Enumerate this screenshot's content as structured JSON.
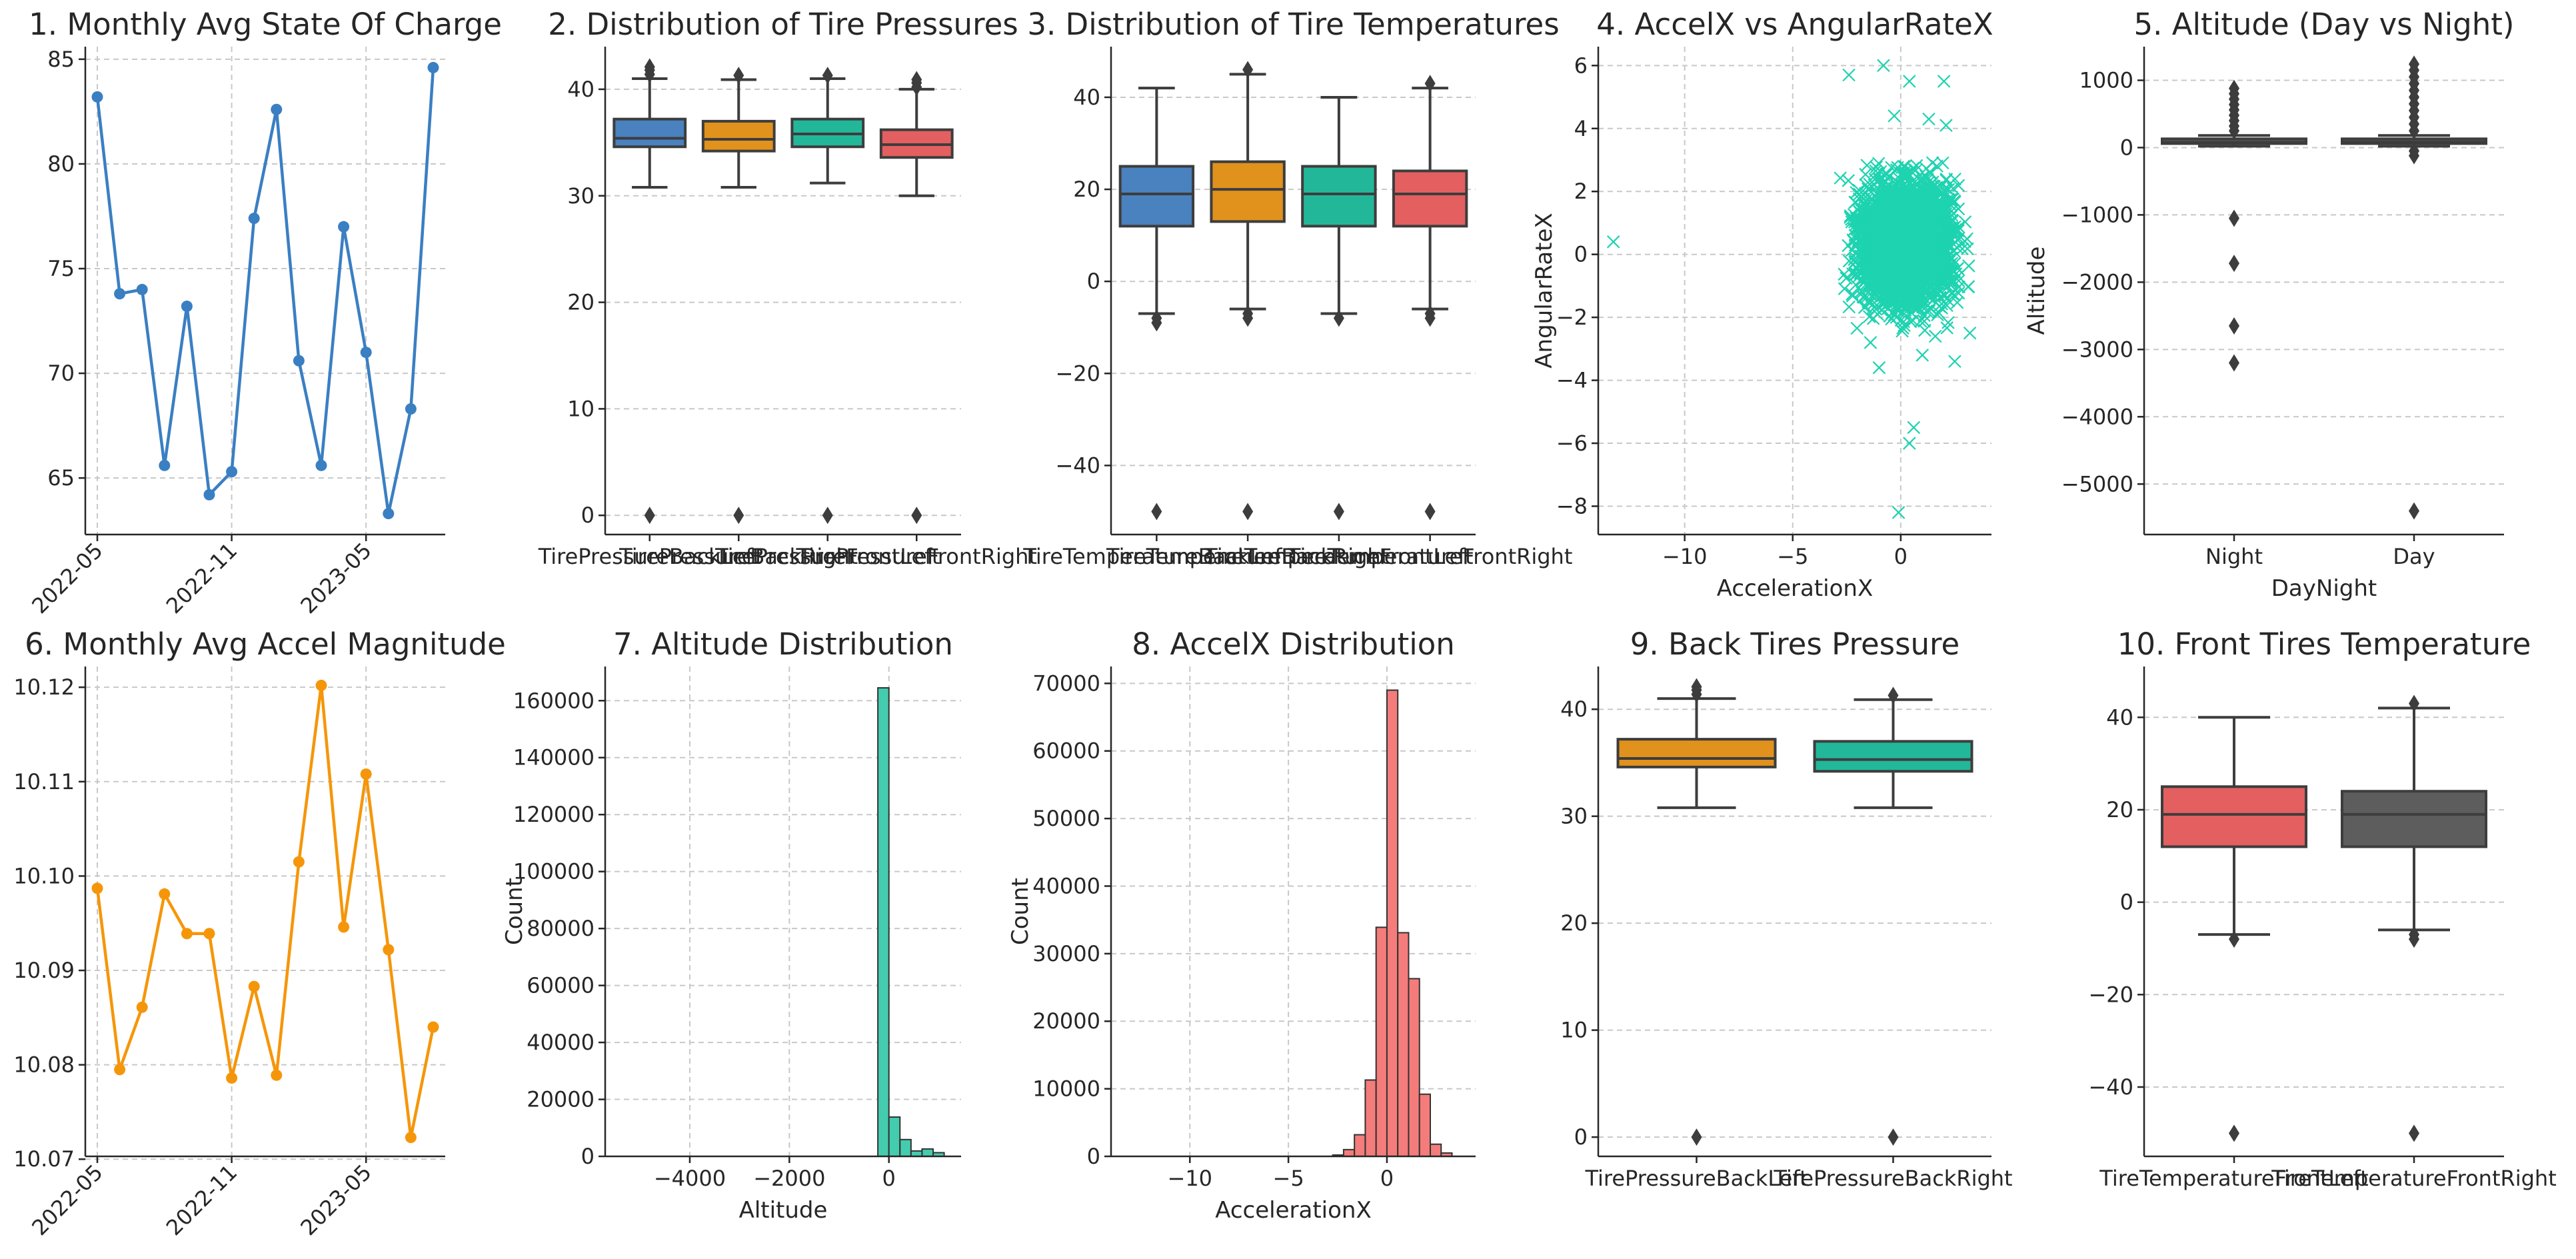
{
  "chart_data": [
    {
      "id": "p1",
      "type": "line",
      "title": "1. Monthly Avg State Of Charge",
      "color": "#3a7fc2",
      "x": [
        "2022-05",
        "2022-06",
        "2022-07",
        "2022-08",
        "2022-09",
        "2022-10",
        "2022-11",
        "2022-12",
        "2023-01",
        "2023-02",
        "2023-03",
        "2023-04",
        "2023-05",
        "2023-06",
        "2023-07",
        "2023-08"
      ],
      "values": [
        83.2,
        73.8,
        74.0,
        65.6,
        73.2,
        64.2,
        65.3,
        77.4,
        82.6,
        70.6,
        65.6,
        77.0,
        71.0,
        63.3,
        68.3,
        84.6
      ],
      "ylim": [
        62.3,
        85.6
      ],
      "yticks": [
        65,
        70,
        75,
        80,
        85
      ],
      "xticks": [
        "2022-05",
        "2022-11",
        "2023-05"
      ],
      "xlabel": "",
      "ylabel": ""
    },
    {
      "id": "p2",
      "type": "box",
      "title": "2. Distribution of Tire Pressures",
      "categories": [
        "TirePressureBackLeft",
        "TirePressureBackRight",
        "TirePressureFrontLeft",
        "TirePressureFrontRight"
      ],
      "colors": [
        "#4a81bf",
        "#e0921d",
        "#23b79a",
        "#e45f60"
      ],
      "boxes": [
        {
          "whislo": 30.8,
          "q1": 34.6,
          "med": 35.4,
          "q3": 37.2,
          "whishi": 41.0,
          "fliers": [
            0,
            41.4,
            41.8,
            42.1
          ]
        },
        {
          "whislo": 30.8,
          "q1": 34.2,
          "med": 35.3,
          "q3": 37.0,
          "whishi": 40.9,
          "fliers": [
            0,
            41.3
          ]
        },
        {
          "whislo": 31.2,
          "q1": 34.6,
          "med": 35.8,
          "q3": 37.2,
          "whishi": 41.0,
          "fliers": [
            0,
            41.3
          ]
        },
        {
          "whislo": 30.0,
          "q1": 33.6,
          "med": 34.8,
          "q3": 36.2,
          "whishi": 40.0,
          "fliers": [
            0,
            40.2,
            40.6,
            40.9
          ]
        }
      ],
      "ylim": [
        -1.8,
        44
      ],
      "yticks": [
        0,
        10,
        20,
        30,
        40
      ],
      "xlabel": "",
      "ylabel": ""
    },
    {
      "id": "p3",
      "type": "box",
      "title": "3. Distribution of Tire Temperatures",
      "categories": [
        "TireTemperatureBackLeft",
        "TireTemperatureBackRight",
        "TireTemperatureFrontLeft",
        "TireTemperatureFrontRight"
      ],
      "colors": [
        "#4a81bf",
        "#e0921d",
        "#23b79a",
        "#e45f60"
      ],
      "boxes": [
        {
          "whislo": -7,
          "q1": 12,
          "med": 19,
          "q3": 25,
          "whishi": 42,
          "fliers": [
            -50,
            -8,
            -9
          ]
        },
        {
          "whislo": -6,
          "q1": 13,
          "med": 20,
          "q3": 26,
          "whishi": 45,
          "fliers": [
            -50,
            -7,
            -8,
            46
          ]
        },
        {
          "whislo": -7,
          "q1": 12,
          "med": 19,
          "q3": 25,
          "whishi": 40,
          "fliers": [
            -50,
            -8
          ]
        },
        {
          "whislo": -6,
          "q1": 12,
          "med": 19,
          "q3": 24,
          "whishi": 42,
          "fliers": [
            -50,
            -7,
            -8,
            43
          ]
        }
      ],
      "ylim": [
        -55,
        51
      ],
      "yticks": [
        -40,
        -20,
        0,
        20,
        40
      ],
      "xlabel": "",
      "ylabel": ""
    },
    {
      "id": "p4",
      "type": "scatter",
      "title": "4. AccelX vs AngularRateX",
      "color": "#1dd3b0",
      "cluster": {
        "x_range": [
          -3,
          3.5
        ],
        "y_range": [
          -2.6,
          3.3
        ],
        "center": [
          0.3,
          0.3
        ]
      },
      "points": [
        [
          -13.3,
          0.4
        ],
        [
          -2.4,
          5.7
        ],
        [
          -0.8,
          6.0
        ],
        [
          0.4,
          5.5
        ],
        [
          2.0,
          5.5
        ],
        [
          1.3,
          4.3
        ],
        [
          0.6,
          -5.5
        ],
        [
          0.4,
          -6.0
        ],
        [
          -0.1,
          -8.2
        ],
        [
          -1.0,
          -3.6
        ],
        [
          1.0,
          -3.2
        ],
        [
          2.5,
          -3.4
        ],
        [
          3.2,
          -2.5
        ],
        [
          -1.4,
          -2.8
        ],
        [
          1.6,
          -2.6
        ],
        [
          2.1,
          4.1
        ],
        [
          -0.3,
          4.4
        ]
      ],
      "xlim": [
        -14,
        4.2
      ],
      "ylim": [
        -8.9,
        6.6
      ],
      "xticks": [
        -10,
        -5,
        0
      ],
      "yticks": [
        -8,
        -6,
        -4,
        -2,
        0,
        2,
        4,
        6
      ],
      "xlabel": "AccelerationX",
      "ylabel": "AngularRateX"
    },
    {
      "id": "p5",
      "type": "box",
      "title": "5. Altitude (Day vs Night)",
      "categories": [
        "Night",
        "Day"
      ],
      "colors": [
        "#5d5d5d",
        "#5d5d5d"
      ],
      "boxes": [
        {
          "whislo": 20,
          "q1": 60,
          "med": 80,
          "q3": 130,
          "whishi": 180,
          "fliers": [
            -1050,
            -1720,
            -2650,
            -3200,
            250,
            320,
            400,
            480,
            560,
            640,
            720,
            800,
            880
          ]
        },
        {
          "whislo": 20,
          "q1": 60,
          "med": 85,
          "q3": 130,
          "whishi": 180,
          "fliers": [
            -5400,
            -120,
            -50,
            250,
            350,
            450,
            550,
            650,
            750,
            850,
            950,
            1050,
            1150,
            1240
          ]
        }
      ],
      "ylim": [
        -5750,
        1500
      ],
      "yticks": [
        -5000,
        -4000,
        -3000,
        -2000,
        -1000,
        0,
        1000
      ],
      "xlabel": "DayNight",
      "ylabel": "Altitude"
    },
    {
      "id": "p6",
      "type": "line",
      "title": "6. Monthly Avg Accel Magnitude",
      "color": "#f5960a",
      "x": [
        "2022-05",
        "2022-06",
        "2022-07",
        "2022-08",
        "2022-09",
        "2022-10",
        "2022-11",
        "2022-12",
        "2023-01",
        "2023-02",
        "2023-03",
        "2023-04",
        "2023-05",
        "2023-06",
        "2023-07",
        "2023-08"
      ],
      "values": [
        10.0987,
        10.0795,
        10.0861,
        10.0981,
        10.0939,
        10.0939,
        10.0786,
        10.0883,
        10.0789,
        10.1015,
        10.1202,
        10.0946,
        10.1108,
        10.0922,
        10.0723,
        10.084
      ],
      "ylim": [
        10.0703,
        10.1222
      ],
      "yticks": [
        10.07,
        10.08,
        10.09,
        10.1,
        10.11,
        10.12
      ],
      "xticks": [
        "2022-05",
        "2022-11",
        "2023-05"
      ],
      "xlabel": "",
      "ylabel": ""
    },
    {
      "id": "p7",
      "type": "histogram",
      "title": "7. Altitude Distribution",
      "color": "#44ccae",
      "bin_width": 222,
      "bins": [
        [
          -111,
          164500
        ],
        [
          111,
          13800
        ],
        [
          333,
          5900
        ],
        [
          555,
          1900
        ],
        [
          777,
          2600
        ],
        [
          999,
          1300
        ]
      ],
      "xlim": [
        -5700,
        1450
      ],
      "ylim": [
        0,
        172000
      ],
      "xticks": [
        -4000,
        -2000,
        0
      ],
      "yticks": [
        0,
        20000,
        40000,
        60000,
        80000,
        100000,
        120000,
        140000,
        160000
      ],
      "xlabel": "Altitude",
      "ylabel": "Count"
    },
    {
      "id": "p8",
      "type": "histogram",
      "title": "8. AccelX Distribution",
      "color": "#f47c7a",
      "bin_width": 0.55,
      "bins": [
        [
          -2.475,
          200
        ],
        [
          -1.925,
          1000
        ],
        [
          -1.375,
          3200
        ],
        [
          -0.825,
          11300
        ],
        [
          -0.275,
          33900
        ],
        [
          0.275,
          69000
        ],
        [
          0.825,
          33100
        ],
        [
          1.375,
          26300
        ],
        [
          1.925,
          9200
        ],
        [
          2.475,
          1800
        ],
        [
          3.025,
          500
        ]
      ],
      "xlim": [
        -14,
        4.5
      ],
      "ylim": [
        0,
        72500
      ],
      "xticks": [
        -10,
        -5,
        0
      ],
      "yticks": [
        0,
        10000,
        20000,
        30000,
        40000,
        50000,
        60000,
        70000
      ],
      "xlabel": "AccelerationX",
      "ylabel": "Count"
    },
    {
      "id": "p9",
      "type": "box",
      "title": "9. Back Tires Pressure",
      "categories": [
        "TirePressureBackLeft",
        "TirePressureBackRight"
      ],
      "colors": [
        "#e0921d",
        "#23b79a"
      ],
      "boxes": [
        {
          "whislo": 30.8,
          "q1": 34.6,
          "med": 35.4,
          "q3": 37.2,
          "whishi": 41.0,
          "fliers": [
            0,
            41.4,
            41.8,
            42.1
          ]
        },
        {
          "whislo": 30.8,
          "q1": 34.2,
          "med": 35.3,
          "q3": 37.0,
          "whishi": 40.9,
          "fliers": [
            0,
            41.3
          ]
        }
      ],
      "ylim": [
        -1.8,
        44
      ],
      "yticks": [
        0,
        10,
        20,
        30,
        40
      ],
      "xlabel": "",
      "ylabel": ""
    },
    {
      "id": "p10",
      "type": "box",
      "title": "10. Front Tires Temperature",
      "categories": [
        "TireTemperatureFrontLeft",
        "TireTemperatureFrontRight"
      ],
      "colors": [
        "#e45f60",
        "#5d5d5d"
      ],
      "boxes": [
        {
          "whislo": -7,
          "q1": 12,
          "med": 19,
          "q3": 25,
          "whishi": 40,
          "fliers": [
            -50,
            -8
          ]
        },
        {
          "whislo": -6,
          "q1": 12,
          "med": 19,
          "q3": 24,
          "whishi": 42,
          "fliers": [
            -50,
            -7,
            -8,
            43
          ]
        }
      ],
      "ylim": [
        -55,
        51
      ],
      "yticks": [
        -40,
        -20,
        0,
        20,
        40
      ],
      "xlabel": "",
      "ylabel": ""
    }
  ]
}
